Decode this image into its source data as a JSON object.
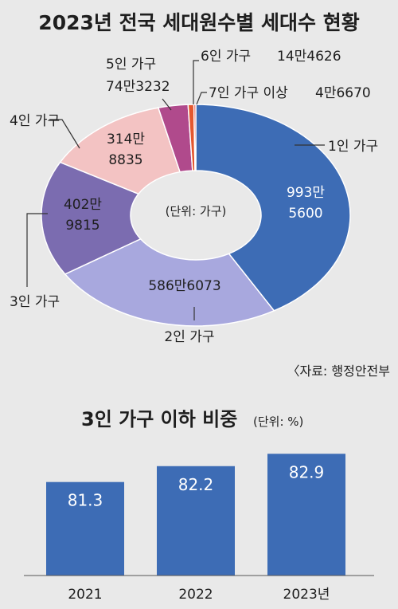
{
  "chart_data": [
    {
      "type": "pie",
      "donut": true,
      "title": "2023년 전국 세대원수별 세대수 현황",
      "center_label": "(단위: 가구)",
      "source": "〈자료: 행정안전부",
      "slices": [
        {
          "name": "1인 가구",
          "value": 9935600,
          "value_label": [
            "993만",
            "5600"
          ],
          "color": "#3d6cb5"
        },
        {
          "name": "2인 가구",
          "value": 5866073,
          "value_label": [
            "586만6073"
          ],
          "color": "#a8a8de"
        },
        {
          "name": "3인 가구",
          "value": 4029815,
          "value_label": [
            "402만",
            "9815"
          ],
          "color": "#7b6cb0"
        },
        {
          "name": "4인 가구",
          "value": 3148835,
          "value_label": [
            "314만",
            "8835"
          ],
          "color": "#f3c3c3"
        },
        {
          "name": "5인 가구",
          "value": 743232,
          "value_label": [
            "74만3232"
          ],
          "color": "#b04a8c"
        },
        {
          "name": "6인 가구",
          "value": 144626,
          "value_label": [
            "14만4626"
          ],
          "color": "#e4572e"
        },
        {
          "name": "7인 가구 이상",
          "value": 46670,
          "value_label": [
            "4만6670"
          ],
          "color": "#e0342a"
        }
      ]
    },
    {
      "type": "bar",
      "title": "3인 가구 이하 비중",
      "unit_label": "(단위: %)",
      "categories": [
        "2021",
        "2022",
        "2023년"
      ],
      "values": [
        81.3,
        82.2,
        82.9
      ],
      "ylim": [
        76,
        83.5
      ],
      "color": "#3d6cb5"
    }
  ]
}
